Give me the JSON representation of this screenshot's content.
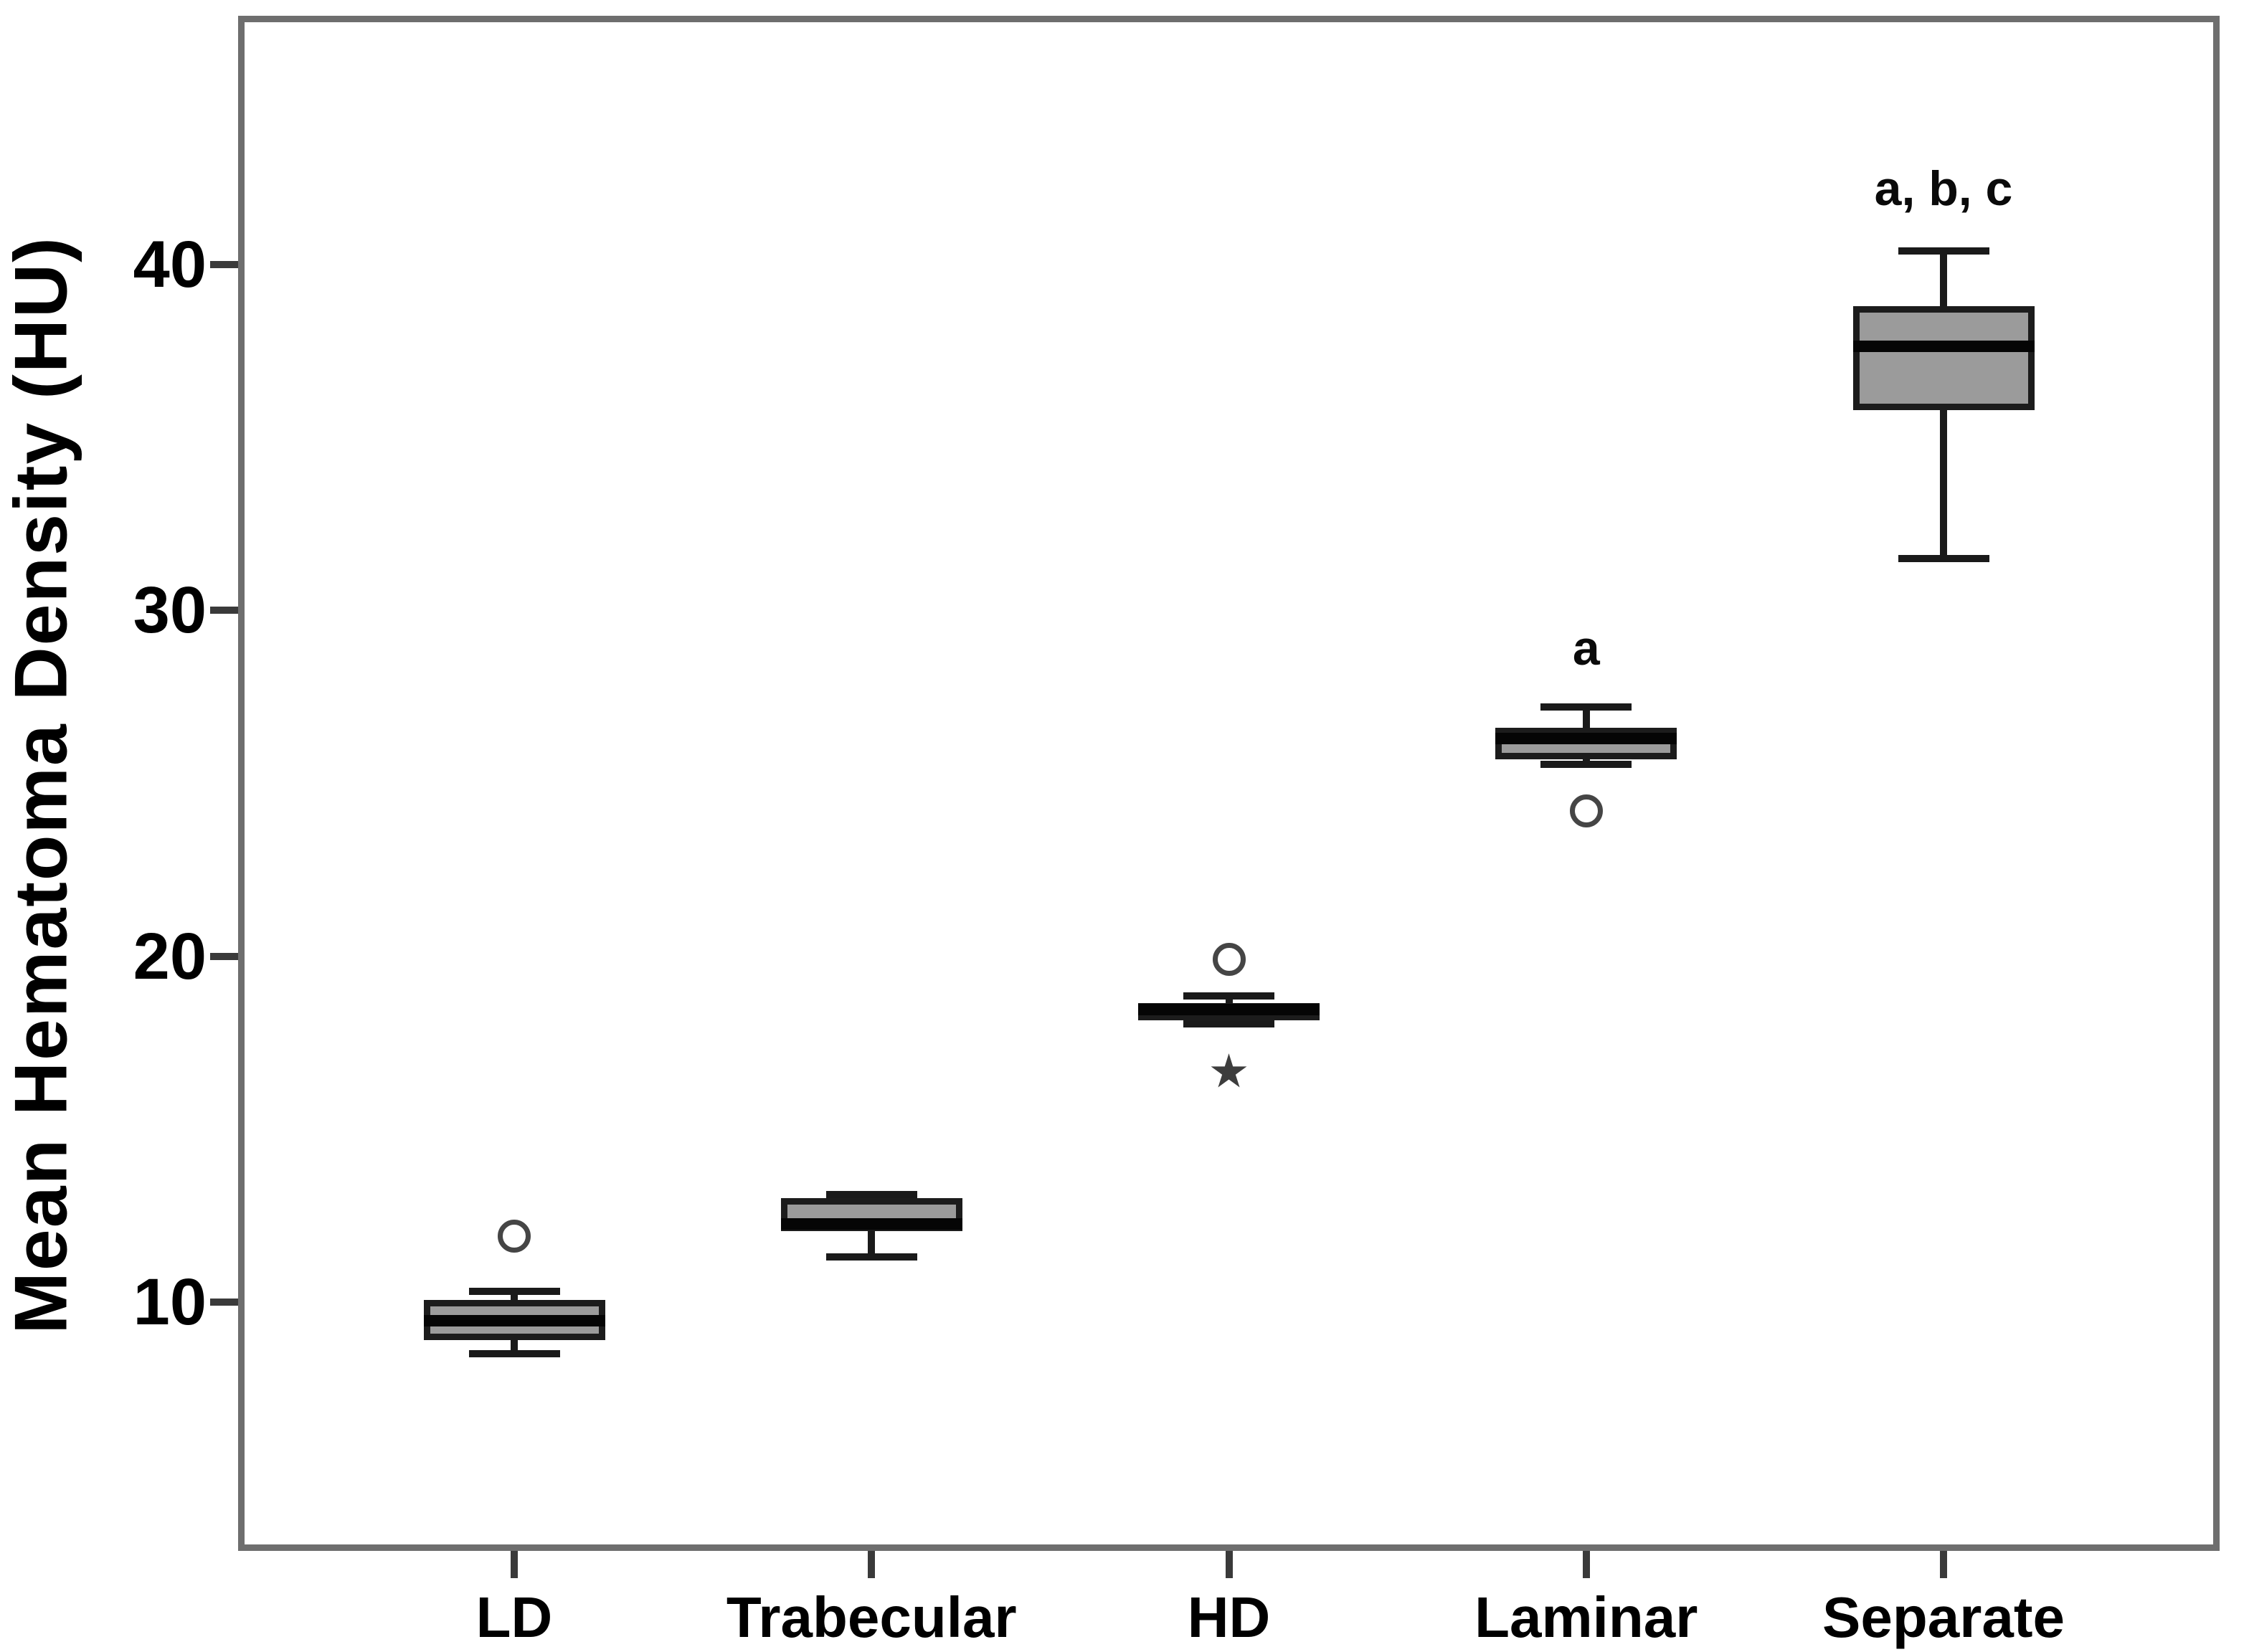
{
  "chart_data": {
    "type": "boxplot",
    "title": "",
    "ylabel": "Mean Hematoma Density (HU)",
    "xlabel": "",
    "categories": [
      "LD",
      "Trabecular",
      "HD",
      "Laminar",
      "Separate"
    ],
    "yticks": [
      40,
      30,
      20,
      10
    ],
    "ylim": [
      2.8,
      47.2
    ],
    "grid": false,
    "legend": false,
    "series": [
      {
        "category": "LD",
        "whisker_low": 8.5,
        "q1": 8.9,
        "median": 9.45,
        "q3": 10.05,
        "whisker_high": 10.3,
        "outliers": [
          {
            "marker": "circle",
            "value": 11.9
          }
        ],
        "annotation": ""
      },
      {
        "category": "Trabecular",
        "whisker_low": 11.3,
        "q1": 12.05,
        "median": 12.25,
        "q3": 13.0,
        "whisker_high": 13.1,
        "outliers": [],
        "annotation": ""
      },
      {
        "category": "HD",
        "whisker_low": 18.05,
        "q1": 18.15,
        "median": 18.45,
        "q3": 18.65,
        "whisker_high": 18.85,
        "outliers": [
          {
            "marker": "circle",
            "value": 19.9
          },
          {
            "marker": "asterisk",
            "value": 16.65
          }
        ],
        "annotation": ""
      },
      {
        "category": "Laminar",
        "whisker_low": 25.55,
        "q1": 25.7,
        "median": 26.3,
        "q3": 26.6,
        "whisker_high": 27.2,
        "outliers": [
          {
            "marker": "circle",
            "value": 24.2
          }
        ],
        "annotation": "a",
        "annotation_value": 28.9
      },
      {
        "category": "Separate",
        "whisker_low": 31.5,
        "q1": 35.8,
        "median": 37.65,
        "q3": 38.8,
        "whisker_high": 40.4,
        "outliers": [],
        "annotation": "a, b, c",
        "annotation_value": 42.2
      }
    ],
    "colors": {
      "box_fill": "#9b9b9b",
      "box_border": "#1c1c1c",
      "median": "#050505",
      "whisker": "#1a1a1a",
      "frame": "#6e6e6e",
      "tick": "#3a3a3a",
      "text": "#000000",
      "outlier_stroke": "#454545",
      "background": "#ffffff"
    }
  }
}
